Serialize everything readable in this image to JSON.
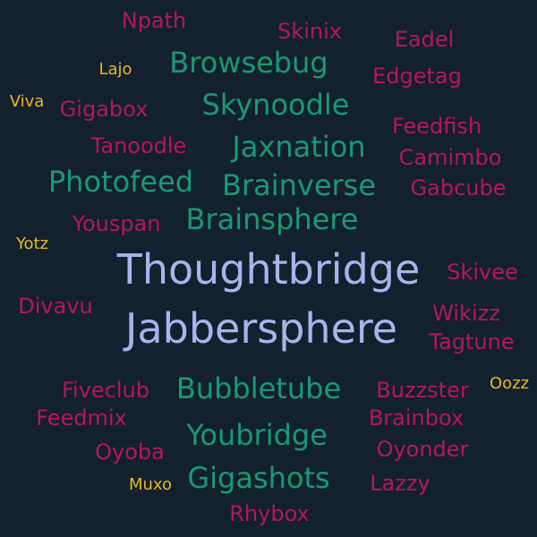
{
  "background": "#13202e",
  "palette": {
    "lavender": "#a8b4ea",
    "green": "#1a9a72",
    "magenta": "#b3185f",
    "yellow": "#e8b828"
  },
  "words": [
    {
      "text": "Thoughtbridge",
      "color": "lavender",
      "weight": 10
    },
    {
      "text": "Jabbersphere",
      "color": "lavender",
      "weight": 10
    },
    {
      "text": "Browsebug",
      "color": "green",
      "weight": 6
    },
    {
      "text": "Skynoodle",
      "color": "green",
      "weight": 6
    },
    {
      "text": "Jaxnation",
      "color": "green",
      "weight": 6
    },
    {
      "text": "Photofeed",
      "color": "green",
      "weight": 6
    },
    {
      "text": "Brainverse",
      "color": "green",
      "weight": 6
    },
    {
      "text": "Brainsphere",
      "color": "green",
      "weight": 6
    },
    {
      "text": "Bubbletube",
      "color": "green",
      "weight": 6
    },
    {
      "text": "Youbridge",
      "color": "green",
      "weight": 6
    },
    {
      "text": "Gigashots",
      "color": "green",
      "weight": 6
    },
    {
      "text": "Npath",
      "color": "magenta",
      "weight": 4
    },
    {
      "text": "Skinix",
      "color": "magenta",
      "weight": 4
    },
    {
      "text": "Eadel",
      "color": "magenta",
      "weight": 4
    },
    {
      "text": "Edgetag",
      "color": "magenta",
      "weight": 4
    },
    {
      "text": "Gigabox",
      "color": "magenta",
      "weight": 4
    },
    {
      "text": "Feedfish",
      "color": "magenta",
      "weight": 4
    },
    {
      "text": "Tanoodle",
      "color": "magenta",
      "weight": 4
    },
    {
      "text": "Camimbo",
      "color": "magenta",
      "weight": 4
    },
    {
      "text": "Gabcube",
      "color": "magenta",
      "weight": 4
    },
    {
      "text": "Youspan",
      "color": "magenta",
      "weight": 4
    },
    {
      "text": "Skivee",
      "color": "magenta",
      "weight": 4
    },
    {
      "text": "Divavu",
      "color": "magenta",
      "weight": 4
    },
    {
      "text": "Wikizz",
      "color": "magenta",
      "weight": 4
    },
    {
      "text": "Tagtune",
      "color": "magenta",
      "weight": 4
    },
    {
      "text": "Fiveclub",
      "color": "magenta",
      "weight": 4
    },
    {
      "text": "Buzzster",
      "color": "magenta",
      "weight": 4
    },
    {
      "text": "Feedmix",
      "color": "magenta",
      "weight": 4
    },
    {
      "text": "Brainbox",
      "color": "magenta",
      "weight": 4
    },
    {
      "text": "Oyoba",
      "color": "magenta",
      "weight": 4
    },
    {
      "text": "Oyonder",
      "color": "magenta",
      "weight": 4
    },
    {
      "text": "Lazzy",
      "color": "magenta",
      "weight": 4
    },
    {
      "text": "Rhybox",
      "color": "magenta",
      "weight": 4
    },
    {
      "text": "Lajo",
      "color": "yellow",
      "weight": 2
    },
    {
      "text": "Viva",
      "color": "yellow",
      "weight": 2
    },
    {
      "text": "Yotz",
      "color": "yellow",
      "weight": 2
    },
    {
      "text": "Oozz",
      "color": "yellow",
      "weight": 2
    },
    {
      "text": "Muxo",
      "color": "yellow",
      "weight": 2
    }
  ]
}
